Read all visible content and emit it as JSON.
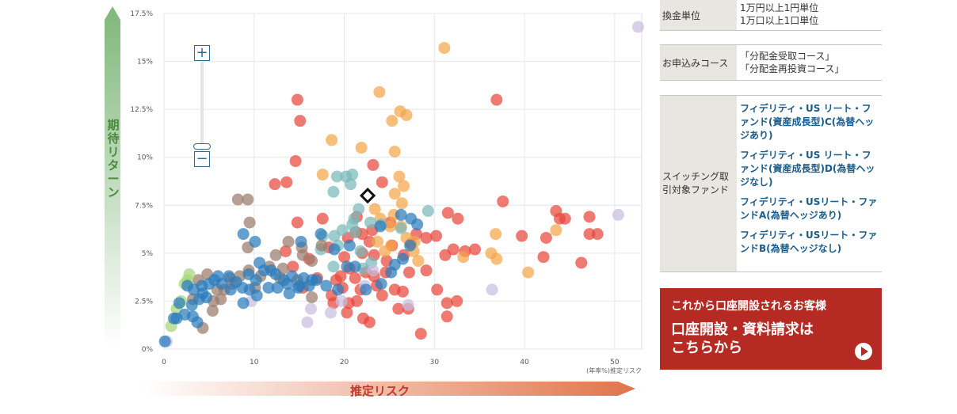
{
  "chart_data": {
    "type": "scatter",
    "xlabel": "(年率%)推定リスク",
    "ylabel": "期待リターン",
    "xlim": [
      0,
      53
    ],
    "ylim": [
      0,
      17.5
    ],
    "x_ticks": [
      "0",
      "10",
      "20",
      "30",
      "40",
      "50"
    ],
    "y_ticks": [
      "0%",
      "2.5%",
      "5%",
      "7.5%",
      "10%",
      "12.5%",
      "15%",
      "17.5%"
    ],
    "grid": true,
    "series": [
      {
        "color": "#e8463c",
        "points": [
          [
            14.8,
            13
          ],
          [
            15.1,
            11.9
          ],
          [
            14.6,
            9.8
          ],
          [
            12.3,
            8.6
          ],
          [
            13.6,
            8.7
          ],
          [
            14.8,
            6.6
          ],
          [
            17.6,
            6.8
          ],
          [
            21.4,
            6.9
          ],
          [
            23.2,
            9.6
          ],
          [
            24.2,
            8.7
          ],
          [
            36.9,
            13
          ],
          [
            37.6,
            7.7
          ],
          [
            31.5,
            7.1
          ],
          [
            32.6,
            6.8
          ],
          [
            39.7,
            5.9
          ],
          [
            42.4,
            5.8
          ],
          [
            43.5,
            7.2
          ],
          [
            43.9,
            6.8
          ],
          [
            44.5,
            6.8
          ],
          [
            47.2,
            6.9
          ],
          [
            47.2,
            6
          ],
          [
            48.1,
            6
          ],
          [
            42.1,
            4.8
          ],
          [
            46.3,
            4.5
          ],
          [
            28,
            6
          ],
          [
            29.1,
            4.1
          ],
          [
            30.3,
            3.1
          ],
          [
            31.4,
            2.4
          ],
          [
            32.5,
            2.5
          ],
          [
            31.4,
            1.7
          ],
          [
            28.5,
            0.8
          ],
          [
            27.1,
            2.1
          ],
          [
            26,
            2.1
          ],
          [
            25.6,
            3.1
          ],
          [
            24.2,
            2.8
          ],
          [
            23.3,
            3.8
          ],
          [
            22.4,
            4
          ],
          [
            21.8,
            3.1
          ],
          [
            20.5,
            2.4
          ],
          [
            19.8,
            3.2
          ],
          [
            18.6,
            2.8
          ],
          [
            19.1,
            3.6
          ],
          [
            20.6,
            4.2
          ],
          [
            22,
            5
          ],
          [
            23.3,
            4.9
          ],
          [
            24.7,
            4.6
          ],
          [
            26.6,
            4.9
          ],
          [
            27.4,
            5.5
          ],
          [
            29.1,
            5.8
          ],
          [
            30.2,
            5.9
          ],
          [
            31.2,
            4.9
          ],
          [
            32.1,
            5.2
          ],
          [
            33.4,
            5.1
          ],
          [
            34.5,
            5.2
          ],
          [
            22.1,
            1.6
          ],
          [
            22.8,
            1.4
          ],
          [
            21.4,
            2.5
          ],
          [
            19.6,
            3.8
          ],
          [
            18.3,
            5.3
          ],
          [
            20.4,
            5.8
          ],
          [
            21.3,
            6.1
          ],
          [
            23.1,
            6.2
          ],
          [
            25.1,
            6.6
          ],
          [
            16.1,
            4.7
          ],
          [
            17,
            3.7
          ],
          [
            15.4,
            3.2
          ],
          [
            14.3,
            4.3
          ],
          [
            13.5,
            5.1
          ],
          [
            18.8,
            2.4
          ],
          [
            20.3,
            1.9
          ],
          [
            23.6,
            3.3
          ],
          [
            24.6,
            4
          ],
          [
            25.3,
            5.4
          ],
          [
            27.2,
            4
          ],
          [
            26.5,
            3
          ],
          [
            22.8,
            5.6
          ],
          [
            22,
            6
          ],
          [
            21.2,
            3.7
          ],
          [
            20,
            4.8
          ]
        ]
      },
      {
        "color": "#f5a54a",
        "points": [
          [
            31.1,
            15.7
          ],
          [
            23.9,
            13.4
          ],
          [
            26.2,
            12.4
          ],
          [
            26.9,
            12.2
          ],
          [
            25.3,
            11.9
          ],
          [
            18.6,
            10.9
          ],
          [
            21.9,
            10.5
          ],
          [
            25.6,
            10.3
          ],
          [
            17.6,
            9.1
          ],
          [
            26.1,
            9
          ],
          [
            26.6,
            8.5
          ],
          [
            25.6,
            8.1
          ],
          [
            26.4,
            7.6
          ],
          [
            23.4,
            7.3
          ],
          [
            24,
            6.8
          ],
          [
            25.1,
            6.4
          ],
          [
            36.8,
            6
          ],
          [
            43.5,
            6.2
          ],
          [
            36.3,
            5
          ],
          [
            36.9,
            4.7
          ],
          [
            40.4,
            4
          ],
          [
            26.9,
            5.8
          ],
          [
            25.2,
            5.4
          ],
          [
            23.7,
            5.6
          ],
          [
            27.7,
            5.1
          ],
          [
            28.2,
            4.6
          ],
          [
            27.8,
            5.6
          ],
          [
            24.5,
            5.1
          ],
          [
            33.2,
            4.8
          ],
          [
            26.3,
            6.4
          ],
          [
            25.5,
            7
          ]
        ]
      },
      {
        "color": "#7ab8b8",
        "points": [
          [
            20.2,
            9
          ],
          [
            20.9,
            9.1
          ],
          [
            19.2,
            9
          ],
          [
            18.8,
            8.2
          ],
          [
            20.7,
            8.6
          ],
          [
            21.6,
            7.3
          ],
          [
            21.1,
            6.8
          ],
          [
            20.9,
            6.5
          ],
          [
            19.8,
            6.2
          ],
          [
            18.9,
            5.9
          ],
          [
            17.6,
            5.9
          ],
          [
            19.3,
            5.4
          ],
          [
            21.2,
            6.1
          ],
          [
            22.9,
            6.6
          ],
          [
            24.1,
            6.5
          ],
          [
            29.3,
            7.2
          ],
          [
            26.3,
            6.3
          ],
          [
            23,
            4.5
          ],
          [
            22.1,
            4.2
          ],
          [
            18.8,
            4.3
          ],
          [
            17.4,
            5.2
          ],
          [
            21.8,
            5.1
          ]
        ]
      },
      {
        "color": "#9a7b6b",
        "points": [
          [
            8.2,
            7.8
          ],
          [
            9.3,
            7.8
          ],
          [
            9.5,
            6.6
          ],
          [
            9.3,
            5.3
          ],
          [
            12.4,
            4.9
          ],
          [
            13.8,
            5.6
          ],
          [
            15.4,
            4.9
          ],
          [
            16.4,
            4.6
          ],
          [
            17.5,
            5.4
          ],
          [
            11.7,
            4.3
          ],
          [
            10.7,
            3.8
          ],
          [
            9.4,
            4.1
          ],
          [
            8.4,
            3.8
          ],
          [
            7.6,
            3.4
          ],
          [
            6.7,
            3.1
          ],
          [
            5.9,
            3.1
          ],
          [
            5.5,
            2.5
          ],
          [
            5.4,
            2
          ],
          [
            4.3,
            1.1
          ],
          [
            3.2,
            2.6
          ],
          [
            6.3,
            2.6
          ],
          [
            16.4,
            2.7
          ],
          [
            14.8,
            3.6
          ],
          [
            12.9,
            3.7
          ],
          [
            10.1,
            3.2
          ],
          [
            7.3,
            3.7
          ],
          [
            4.8,
            3.9
          ],
          [
            3.8,
            3.6
          ],
          [
            13.2,
            4.2
          ],
          [
            15.3,
            5.3
          ]
        ]
      },
      {
        "color": "#a6d67a",
        "points": [
          [
            2.8,
            3.9
          ],
          [
            2.6,
            3.6
          ],
          [
            2.3,
            3.4
          ],
          [
            1.9,
            2.5
          ],
          [
            0.8,
            1.2
          ],
          [
            1.4,
            2.1
          ]
        ]
      },
      {
        "color": "#c9bde0",
        "points": [
          [
            52.6,
            16.8
          ],
          [
            50.4,
            7
          ],
          [
            36.4,
            3.1
          ],
          [
            27.1,
            2.3
          ],
          [
            19.7,
            2.5
          ],
          [
            18.5,
            1.9
          ],
          [
            16.3,
            2.1
          ],
          [
            15.9,
            1.4
          ],
          [
            9.7,
            2.5
          ],
          [
            0.3,
            0.4
          ],
          [
            22.3,
            3.3
          ],
          [
            23.2,
            4.1
          ]
        ]
      },
      {
        "color": "#2a7bbd",
        "points": [
          [
            26.3,
            7
          ],
          [
            27.4,
            6.8
          ],
          [
            28.1,
            6.5
          ],
          [
            24,
            6.4
          ],
          [
            8.8,
            6
          ],
          [
            10.1,
            5.6
          ],
          [
            15.2,
            5.6
          ],
          [
            17.4,
            6
          ],
          [
            18.9,
            5.2
          ],
          [
            20.6,
            5.4
          ],
          [
            10.6,
            4.5
          ],
          [
            11.9,
            4.1
          ],
          [
            12.4,
            3.9
          ],
          [
            13.3,
            3.6
          ],
          [
            13.7,
            3.4
          ],
          [
            14.2,
            3.8
          ],
          [
            14.9,
            3.2
          ],
          [
            15.5,
            3.7
          ],
          [
            16.1,
            3.3
          ],
          [
            16.9,
            3.6
          ],
          [
            18,
            3.3
          ],
          [
            19.3,
            3.1
          ],
          [
            20.3,
            4.3
          ],
          [
            21.2,
            4.3
          ],
          [
            22.4,
            3.1
          ],
          [
            24.1,
            3.4
          ],
          [
            25.2,
            4
          ],
          [
            26.5,
            4.7
          ],
          [
            27.3,
            5.4
          ],
          [
            25.6,
            4.4
          ],
          [
            10.2,
            3.6
          ],
          [
            9.4,
            3.9
          ],
          [
            8.7,
            3.2
          ],
          [
            8,
            3.5
          ],
          [
            7.4,
            3.1
          ],
          [
            6.4,
            3.4
          ],
          [
            5.6,
            3.6
          ],
          [
            5,
            3.4
          ],
          [
            4.3,
            2.9
          ],
          [
            3.9,
            2.6
          ],
          [
            3.1,
            2.3
          ],
          [
            2.3,
            1.8
          ],
          [
            1.4,
            1.6
          ],
          [
            1.7,
            2.4
          ],
          [
            3.2,
            1.7
          ],
          [
            3.7,
            1.4
          ],
          [
            4.7,
            2.7
          ],
          [
            6,
            3.8
          ],
          [
            7.2,
            3.8
          ],
          [
            8.8,
            2.4
          ],
          [
            10.3,
            2.8
          ],
          [
            11.6,
            3.2
          ],
          [
            12.6,
            3.2
          ],
          [
            13.9,
            2.9
          ],
          [
            15,
            3.3
          ],
          [
            16.4,
            3.6
          ],
          [
            11.1,
            4.1
          ],
          [
            9.5,
            3.1
          ],
          [
            0.1,
            0.4
          ],
          [
            1.1,
            1.6
          ],
          [
            2.6,
            3.3
          ],
          [
            3.3,
            3.1
          ],
          [
            4.2,
            3.3
          ]
        ]
      }
    ],
    "highlight": {
      "x": 22.6,
      "y": 8
    }
  },
  "labels": {
    "y_axis": "期待リターン",
    "x_axis": "推定リスク",
    "x_unit": "(年率%)推定リスク"
  },
  "zoom": {
    "in_label": "+",
    "out_label": "−"
  },
  "side": {
    "exchange_unit": {
      "label": "換金単位",
      "lines": [
        "1万円以上1円単位",
        "1万口以上1口単位"
      ]
    },
    "application": {
      "label": "お申込みコース",
      "lines": [
        "「分配金受取コース」",
        "「分配金再投資コース」"
      ]
    },
    "switching": {
      "label": "スイッチング取引対象ファンド",
      "funds": [
        "フィデリティ・US リート・ファンド(資産成長型)C(為替ヘッジあり)",
        "フィデリティ・US リート・ファンド(資産成長型)D(為替ヘッジなし)",
        "フィデリティ・USリート・ファンドA(為替ヘッジあり)",
        "フィデリティ・USリート・ファンドB(為替ヘッジなし)"
      ]
    }
  },
  "cta": {
    "sub": "これから口座開設されるお客様",
    "main_line1": "口座開設・資料請求は",
    "main_line2": "こちらから"
  },
  "colors": {
    "accent_red": "#b52a22",
    "green": "#4a8a3c",
    "link_blue": "#1a5b8a"
  }
}
